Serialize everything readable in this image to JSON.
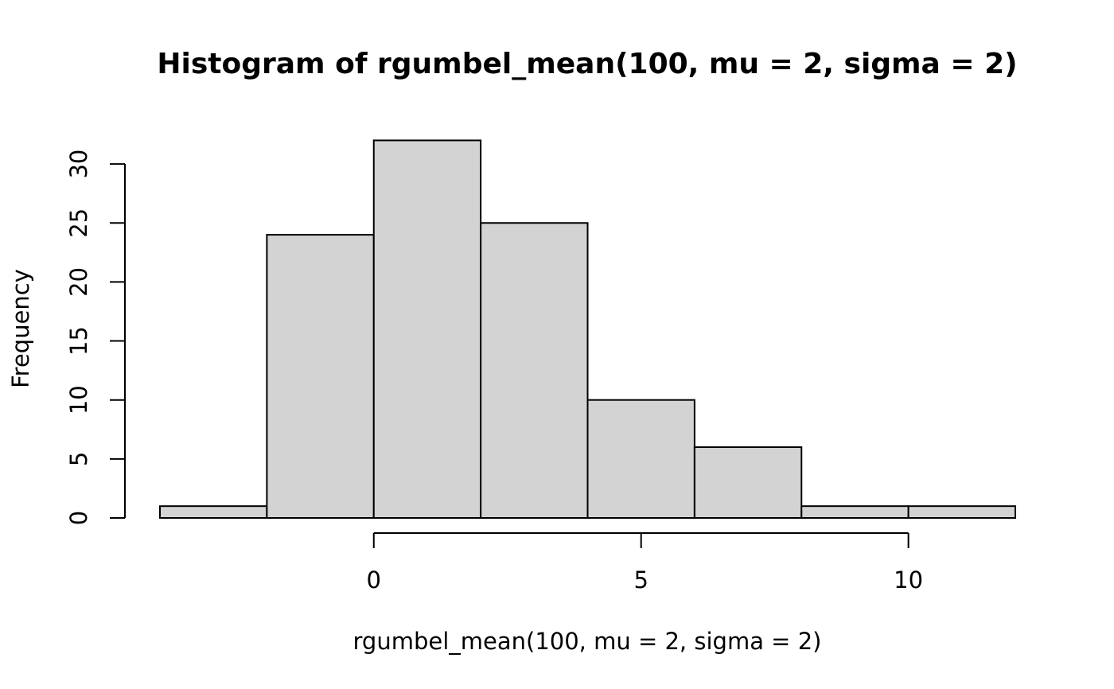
{
  "chart_data": {
    "type": "bar",
    "title": "Histogram of rgumbel_mean(100, mu = 2, sigma = 2)",
    "xlabel": "rgumbel_mean(100, mu = 2, sigma = 2)",
    "ylabel": "Frequency",
    "bins": [
      {
        "x0": -4,
        "x1": -2,
        "count": 1
      },
      {
        "x0": -2,
        "x1": 0,
        "count": 24
      },
      {
        "x0": 0,
        "x1": 2,
        "count": 32
      },
      {
        "x0": 2,
        "x1": 4,
        "count": 25
      },
      {
        "x0": 4,
        "x1": 6,
        "count": 10
      },
      {
        "x0": 6,
        "x1": 8,
        "count": 6
      },
      {
        "x0": 8,
        "x1": 10,
        "count": 1
      },
      {
        "x0": 10,
        "x1": 12,
        "count": 1
      }
    ],
    "xlim": [
      -4,
      12
    ],
    "ylim": [
      0,
      32
    ],
    "x_ticks": [
      0,
      5,
      10
    ],
    "y_ticks": [
      0,
      5,
      10,
      15,
      20,
      25,
      30
    ],
    "bar_fill": "#d3d3d3",
    "grid": false,
    "legend": "none"
  }
}
